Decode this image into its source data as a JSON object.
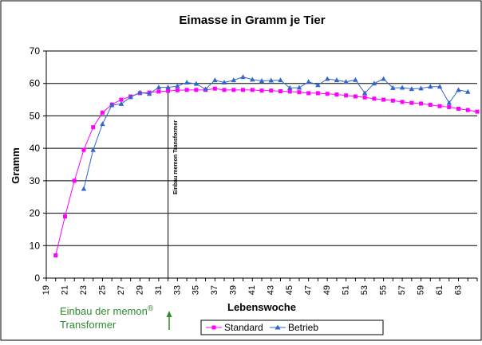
{
  "chart_data": {
    "type": "line",
    "title": "Eimasse in Gramm je Tier",
    "xlabel": "Lebenswoche",
    "ylabel": "Gramm",
    "xlim": [
      19,
      65
    ],
    "ylim": [
      0,
      70
    ],
    "yticks": [
      0,
      10,
      20,
      30,
      40,
      50,
      60,
      70
    ],
    "xticks": [
      19,
      21,
      23,
      25,
      27,
      29,
      31,
      33,
      35,
      37,
      39,
      41,
      43,
      45,
      47,
      49,
      51,
      53,
      55,
      57,
      59,
      61,
      63
    ],
    "grid": "horizontal",
    "legend_position": "bottom-right",
    "series": [
      {
        "name": "Standard",
        "color": "#ff00ff",
        "marker": "square",
        "x": [
          20,
          21,
          22,
          23,
          24,
          25,
          26,
          27,
          28,
          29,
          30,
          31,
          32,
          33,
          34,
          35,
          36,
          37,
          38,
          39,
          40,
          41,
          42,
          43,
          44,
          45,
          46,
          47,
          48,
          49,
          50,
          51,
          52,
          53,
          54,
          55,
          56,
          57,
          58,
          59,
          60,
          61,
          62,
          63,
          64,
          65
        ],
        "y": [
          7,
          19,
          30,
          39.5,
          46.5,
          51,
          53.5,
          55,
          56,
          57,
          57.2,
          57.5,
          57.7,
          57.9,
          58,
          58,
          58,
          58.4,
          58,
          58,
          58,
          58,
          57.8,
          57.8,
          57.6,
          57.5,
          57.3,
          57,
          57,
          56.8,
          56.6,
          56.3,
          56,
          55.7,
          55.3,
          55,
          54.7,
          54.3,
          54,
          53.8,
          53.4,
          53,
          52.7,
          52.2,
          51.8,
          51.3
        ]
      },
      {
        "name": "Betrieb",
        "color": "#3366cc",
        "marker": "triangle",
        "x": [
          23,
          24,
          25,
          26,
          27,
          28,
          29,
          30,
          31,
          32,
          33,
          34,
          35,
          36,
          37,
          38,
          39,
          40,
          41,
          42,
          43,
          44,
          45,
          46,
          47,
          48,
          49,
          50,
          51,
          52,
          53,
          54,
          55,
          56,
          57,
          58,
          59,
          60,
          61,
          62,
          63,
          64
        ],
        "y": [
          27.5,
          39.5,
          47.5,
          53.3,
          53.7,
          55.8,
          57.2,
          56.8,
          58.8,
          58.8,
          59.2,
          60.3,
          59.9,
          58.2,
          61,
          60.3,
          61,
          62,
          61.2,
          60.8,
          60.9,
          61,
          58.6,
          58.7,
          60.5,
          59.5,
          61.4,
          61,
          60.5,
          61.1,
          57,
          60,
          61.4,
          58.6,
          58.7,
          58.3,
          58.5,
          59,
          59,
          54,
          58,
          57.4
        ]
      }
    ],
    "annotations": {
      "vertical_line_x": 32,
      "vertical_label": "Einbau memon Transformer",
      "bottom_note_line1": "Einbau der memon",
      "bottom_note_sup": "®",
      "bottom_note_line2": "Transformer"
    }
  }
}
